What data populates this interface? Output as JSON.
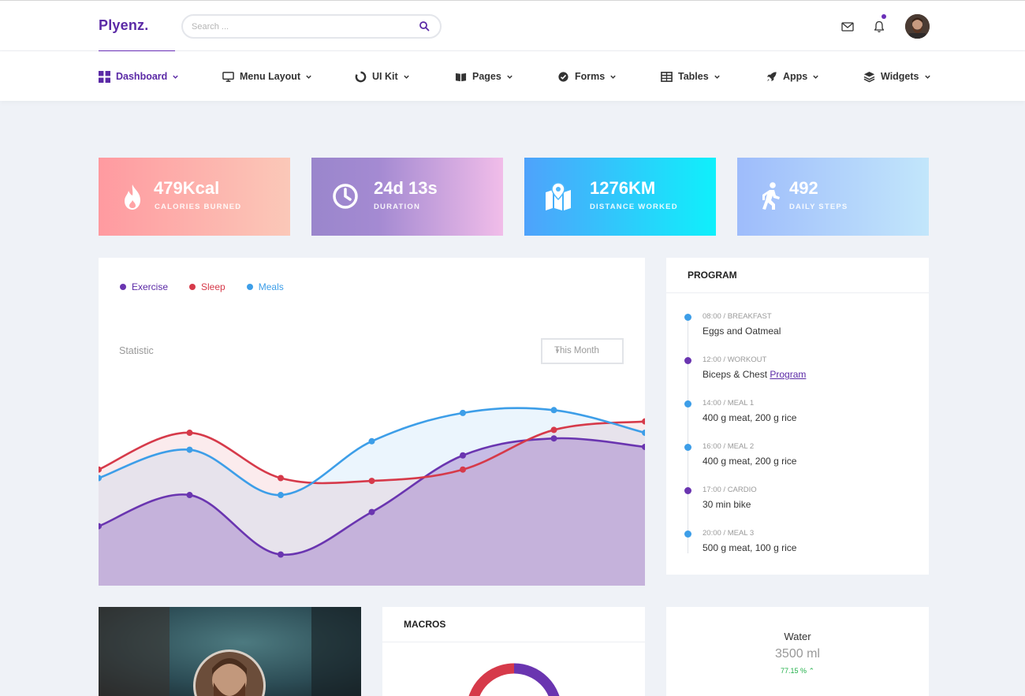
{
  "app": {
    "logo": "Plyenz."
  },
  "search": {
    "placeholder": "Search ..."
  },
  "nav": [
    {
      "label": "Dashboard",
      "icon": "grid-icon",
      "active": true
    },
    {
      "label": "Menu Layout",
      "icon": "monitor-icon"
    },
    {
      "label": "UI Kit",
      "icon": "circle-notch-icon"
    },
    {
      "label": "Pages",
      "icon": "book-icon"
    },
    {
      "label": "Forms",
      "icon": "check-circle-icon"
    },
    {
      "label": "Tables",
      "icon": "table-icon"
    },
    {
      "label": "Apps",
      "icon": "rocket-icon"
    },
    {
      "label": "Widgets",
      "icon": "layers-icon"
    }
  ],
  "stats": [
    {
      "value": "479Kcal",
      "label": "CALORIES BURNED",
      "icon": "flame-icon"
    },
    {
      "value": "24d 13s",
      "label": "DURATION",
      "icon": "clock-icon"
    },
    {
      "value": "1276KM",
      "label": "DISTANCE WORKED",
      "icon": "map-icon"
    },
    {
      "value": "492",
      "label": "DAILY STEPS",
      "icon": "walking-icon"
    }
  ],
  "chart_panel": {
    "title": "Statistic",
    "period": "This Month",
    "legend": [
      {
        "name": "Exercise",
        "color": "#6a35b0"
      },
      {
        "name": "Sleep",
        "color": "#d63a4a"
      },
      {
        "name": "Meals",
        "color": "#3d9ee8"
      }
    ]
  },
  "chart_data": {
    "type": "area",
    "title": "Statistic",
    "x": [
      0,
      1,
      2,
      3,
      4,
      5,
      6
    ],
    "series": [
      {
        "name": "Exercise",
        "values": [
          13,
          24,
          3,
          18,
          38,
          44,
          41
        ]
      },
      {
        "name": "Sleep",
        "values": [
          33,
          46,
          30,
          29,
          33,
          47,
          50
        ]
      },
      {
        "name": "Meals",
        "values": [
          30,
          40,
          24,
          43,
          53,
          54,
          46
        ]
      }
    ],
    "ylim": [
      -8,
      68
    ],
    "grid": false
  },
  "program": {
    "title": "PROGRAM",
    "items": [
      {
        "meta": "08:00 / BREAKFAST",
        "text": "Eggs and Oatmeal",
        "color": "#3d9ee8"
      },
      {
        "meta": "12:00 / WORKOUT",
        "text": "Biceps & Chest ",
        "link": "Program",
        "color": "#6a35b0"
      },
      {
        "meta": "14:00 / MEAL 1",
        "text": "400 g meat, 200 g rice",
        "color": "#3d9ee8"
      },
      {
        "meta": "16:00 / MEAL 2",
        "text": "400 g meat, 200 g rice",
        "color": "#3d9ee8"
      },
      {
        "meta": "17:00 / CARDIO",
        "text": "30 min bike",
        "color": "#6a35b0"
      },
      {
        "meta": "20:00 / MEAL 3",
        "text": "500 g meat, 100 g rice",
        "color": "#3d9ee8"
      }
    ]
  },
  "macros": {
    "title": "MACROS"
  },
  "water": {
    "title": "Water",
    "value": "3500 ml",
    "change": "77.15 %"
  },
  "colors": {
    "brand": "#5b2aa6",
    "background": "#eff2f7"
  }
}
